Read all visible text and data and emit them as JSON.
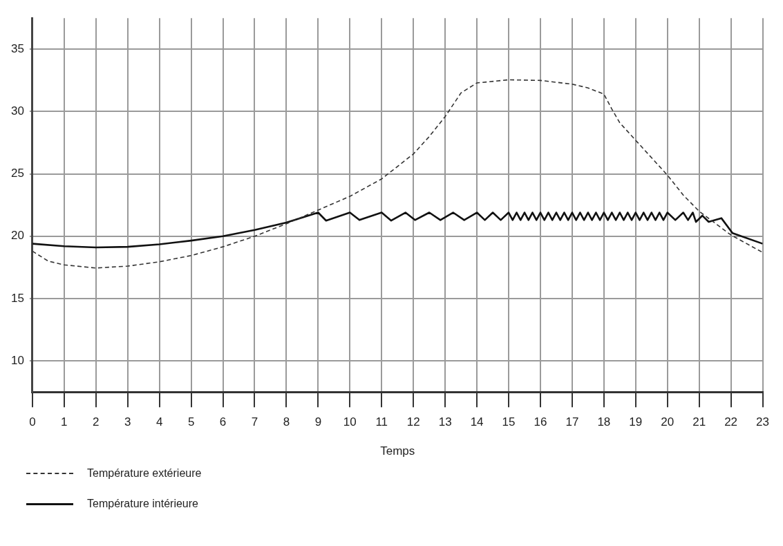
{
  "chart_data": {
    "type": "line",
    "xlabel": "Temps",
    "xlim": [
      0,
      23
    ],
    "xticks": [
      0,
      1,
      2,
      3,
      4,
      5,
      6,
      7,
      8,
      9,
      10,
      11,
      12,
      13,
      14,
      15,
      16,
      17,
      18,
      19,
      20,
      21,
      22,
      23
    ],
    "ylim": [
      7.5,
      37.5
    ],
    "yticks": [
      10,
      15,
      20,
      25,
      30,
      35
    ],
    "grid": true,
    "legend": "bottom left",
    "marker": "none",
    "series": [
      {
        "name": "Température extérieure",
        "color": "#333333",
        "line_style": "dashed",
        "x": [
          0,
          0.5,
          1,
          2,
          3,
          4,
          5,
          6,
          7,
          8,
          9,
          10,
          11,
          12,
          12.5,
          13,
          13.5,
          14,
          15,
          16,
          17,
          17.5,
          18,
          18.25,
          18.5,
          19,
          20,
          20.5,
          21,
          22,
          23
        ],
        "values": [
          18.8,
          18.0,
          17.7,
          17.45,
          17.6,
          17.95,
          18.45,
          19.15,
          20.0,
          21.0,
          22.1,
          23.2,
          24.6,
          26.6,
          28.0,
          29.6,
          31.5,
          32.3,
          32.55,
          32.5,
          32.2,
          31.9,
          31.4,
          30.2,
          29.1,
          27.7,
          24.9,
          23.3,
          22.0,
          20.1,
          18.7
        ]
      },
      {
        "name": "Température intérieure",
        "color": "#111111",
        "line_style": "solid",
        "x": [
          0,
          1,
          2,
          3,
          4,
          5,
          6,
          7,
          8,
          9,
          9.25,
          10,
          10.3,
          11,
          11.3,
          11.75,
          12.05,
          12.5,
          12.85,
          13.25,
          13.6,
          14,
          14.25,
          14.5,
          14.75,
          15,
          15.125,
          15.25,
          15.375,
          15.5,
          15.625,
          15.75,
          15.875,
          16,
          16.125,
          16.25,
          16.375,
          16.5,
          16.625,
          16.75,
          16.875,
          17,
          17.125,
          17.25,
          17.375,
          17.5,
          17.625,
          17.75,
          17.875,
          18,
          18.125,
          18.25,
          18.375,
          18.5,
          18.625,
          18.75,
          18.875,
          19,
          19.125,
          19.25,
          19.375,
          19.5,
          19.625,
          19.75,
          19.875,
          20,
          20.25,
          20.5,
          20.65,
          20.8,
          20.9,
          21.1,
          21.3,
          21.7,
          22.05,
          23
        ],
        "values": [
          19.4,
          19.2,
          19.1,
          19.15,
          19.35,
          19.65,
          20.0,
          20.5,
          21.1,
          21.9,
          21.25,
          21.9,
          21.3,
          21.9,
          21.25,
          21.9,
          21.3,
          21.9,
          21.3,
          21.9,
          21.3,
          21.9,
          21.3,
          21.9,
          21.3,
          21.9,
          21.3,
          21.9,
          21.3,
          21.9,
          21.3,
          21.9,
          21.3,
          21.9,
          21.3,
          21.9,
          21.3,
          21.9,
          21.3,
          21.9,
          21.3,
          21.9,
          21.3,
          21.9,
          21.3,
          21.9,
          21.3,
          21.9,
          21.3,
          21.9,
          21.3,
          21.9,
          21.3,
          21.9,
          21.3,
          21.9,
          21.3,
          21.9,
          21.3,
          21.9,
          21.3,
          21.9,
          21.3,
          21.9,
          21.3,
          21.9,
          21.3,
          21.9,
          21.3,
          21.9,
          21.15,
          21.65,
          21.15,
          21.45,
          20.25,
          19.4
        ]
      }
    ]
  }
}
